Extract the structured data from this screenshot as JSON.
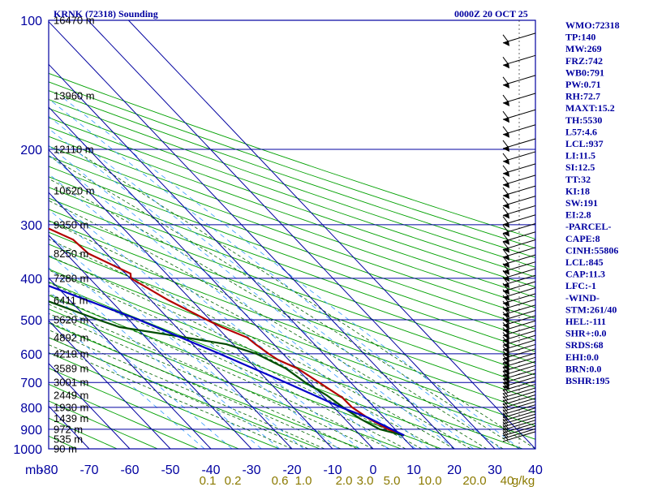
{
  "header": {
    "station": "KRNK (72318) Sounding",
    "time": "0000Z 20 OCT 25"
  },
  "chart_data": {
    "type": "line",
    "pressure_levels": [
      100,
      200,
      300,
      400,
      500,
      600,
      700,
      800,
      900,
      1000
    ],
    "pressure_labels": [
      "100",
      "200",
      "300",
      "400",
      "500",
      "600",
      "700",
      "800",
      "900",
      "1000"
    ],
    "pressure_unit": "mb",
    "ylim": [
      100,
      1000
    ],
    "temperature_ticks": [
      -80,
      -70,
      -60,
      -50,
      -40,
      -30,
      -20,
      -10,
      0,
      10,
      20,
      30,
      40
    ],
    "temperature_labels": [
      "-80",
      "-70",
      "-60",
      "-50",
      "-40",
      "-30",
      "-20",
      "-10",
      "0",
      "10",
      "20",
      "30",
      "40"
    ],
    "xlim": [
      -80,
      40
    ],
    "mixing_ratio_labels": [
      "0.1",
      "0.2",
      "0.6",
      "1.0",
      "2.0",
      "3.0",
      "5.0",
      "10.0",
      "20.0",
      "40",
      "g/kg"
    ],
    "heights": [
      {
        "label": "16470 m",
        "p": 100
      },
      {
        "label": "13960 m",
        "p": 150
      },
      {
        "label": "12110 m",
        "p": 200
      },
      {
        "label": "10620 m",
        "p": 250
      },
      {
        "label": "9350 m",
        "p": 300
      },
      {
        "label": "8250 m",
        "p": 350
      },
      {
        "label": "7280 m",
        "p": 400
      },
      {
        "label": "6411 m",
        "p": 450
      },
      {
        "label": "5620 m",
        "p": 500
      },
      {
        "label": "4892 m",
        "p": 550
      },
      {
        "label": "4219 m",
        "p": 600
      },
      {
        "label": "3589 m",
        "p": 650
      },
      {
        "label": "3001 m",
        "p": 700
      },
      {
        "label": "2449 m",
        "p": 750
      },
      {
        "label": "1930 m",
        "p": 800
      },
      {
        "label": "1439 m",
        "p": 850
      },
      {
        "label": "972 m",
        "p": 900
      },
      {
        "label": "535 m",
        "p": 950
      },
      {
        "label": "90 m",
        "p": 1000
      }
    ],
    "series": [
      {
        "color": "#b40000",
        "points": [
          {
            "p": 930,
            "t": 10.8
          },
          {
            "p": 900,
            "t": 8.2
          },
          {
            "p": 850,
            "t": 6.0
          },
          {
            "p": 800,
            "t": 4.5
          },
          {
            "p": 760,
            "t": 4.4
          },
          {
            "p": 700,
            "t": 2.2
          },
          {
            "p": 650,
            "t": 0.2
          },
          {
            "p": 620,
            "t": -2.6
          },
          {
            "p": 600,
            "t": -3.5
          },
          {
            "p": 570,
            "t": -4.5
          },
          {
            "p": 550,
            "t": -5.0
          },
          {
            "p": 520,
            "t": -8.8
          },
          {
            "p": 500,
            "t": -10.8
          },
          {
            "p": 450,
            "t": -15.7
          },
          {
            "p": 400,
            "t": -19.8
          },
          {
            "p": 390,
            "t": -18.8
          },
          {
            "p": 350,
            "t": -24.5
          },
          {
            "p": 325,
            "t": -25.0
          },
          {
            "p": 300,
            "t": -29.6
          },
          {
            "p": 250,
            "t": -37.5
          },
          {
            "p": 225,
            "t": -42.5
          },
          {
            "p": 200,
            "t": -47.8
          },
          {
            "p": 175,
            "t": -51.0
          },
          {
            "p": 160,
            "t": -52.2
          },
          {
            "p": 150,
            "t": -56.0
          },
          {
            "p": 125,
            "t": -61.5
          },
          {
            "p": 110,
            "t": -61.8
          },
          {
            "p": 100,
            "t": -61.3
          }
        ]
      },
      {
        "color": "#004d00",
        "points": [
          {
            "p": 930,
            "t": 10.6
          },
          {
            "p": 900,
            "t": 6.2
          },
          {
            "p": 850,
            "t": 3.8
          },
          {
            "p": 800,
            "t": 2.3
          },
          {
            "p": 750,
            "t": 1.1
          },
          {
            "p": 700,
            "t": -1.2
          },
          {
            "p": 650,
            "t": -2.7
          },
          {
            "p": 600,
            "t": -6.5
          },
          {
            "p": 570,
            "t": -11.7
          },
          {
            "p": 550,
            "t": -20.0
          },
          {
            "p": 520,
            "t": -34.0
          },
          {
            "p": 500,
            "t": -37.5
          },
          {
            "p": 450,
            "t": -46.0
          },
          {
            "p": 420,
            "t": -50.0
          },
          {
            "p": 400,
            "t": -52.5
          },
          {
            "p": 375,
            "t": -54.0
          },
          {
            "p": 350,
            "t": -57.0
          },
          {
            "p": 325,
            "t": -58.5
          },
          {
            "p": 300,
            "t": -62.0
          },
          {
            "p": 250,
            "t": -70.0
          },
          {
            "p": 225,
            "t": -73.5
          },
          {
            "p": 200,
            "t": -78.0
          },
          {
            "p": 175,
            "t": -83.0
          },
          {
            "p": 150,
            "t": -88.0
          }
        ]
      },
      {
        "color": "#0000c8",
        "points": [
          {
            "p": 930,
            "t": 10.8
          },
          {
            "p": 845,
            "t": 6.0
          },
          {
            "p": 800,
            "t": 1.8
          },
          {
            "p": 700,
            "t": -6.0
          },
          {
            "p": 600,
            "t": -15.6
          },
          {
            "p": 500,
            "t": -27.5
          },
          {
            "p": 400,
            "t": -45.0
          },
          {
            "p": 300,
            "t": -66.5
          },
          {
            "p": 250,
            "t": -81.0
          }
        ]
      }
    ],
    "grid": true
  },
  "indices": [
    "WMO:72318",
    "TP:140",
    "MW:269",
    "FRZ:742",
    "WB0:791",
    "PW:0.71",
    "RH:72.7",
    "MAXT:15.2",
    "TH:5530",
    "L57:4.6",
    "LCL:937",
    "LI:11.5",
    "SI:12.5",
    "TT:32",
    "KI:18",
    "SW:191",
    "EI:2.8",
    "-PARCEL-",
    "CAPE:8",
    "CINH:55806",
    "LCL:845",
    "CAP:11.3",
    "LFC:-1",
    "-WIND-",
    "STM:261/40",
    "HEL:-111",
    "SHR+:0.0",
    "SRDS:68",
    "EHI:0.0",
    "BRN:0.0",
    "BSHR:195"
  ],
  "colors": {
    "grid_blue": "#0000a0",
    "dry_adiabat": "#00a000",
    "moist_adiabat": "#006400",
    "mixing_ratio": "#3399ff",
    "mixing_label": "#8b7a00"
  }
}
